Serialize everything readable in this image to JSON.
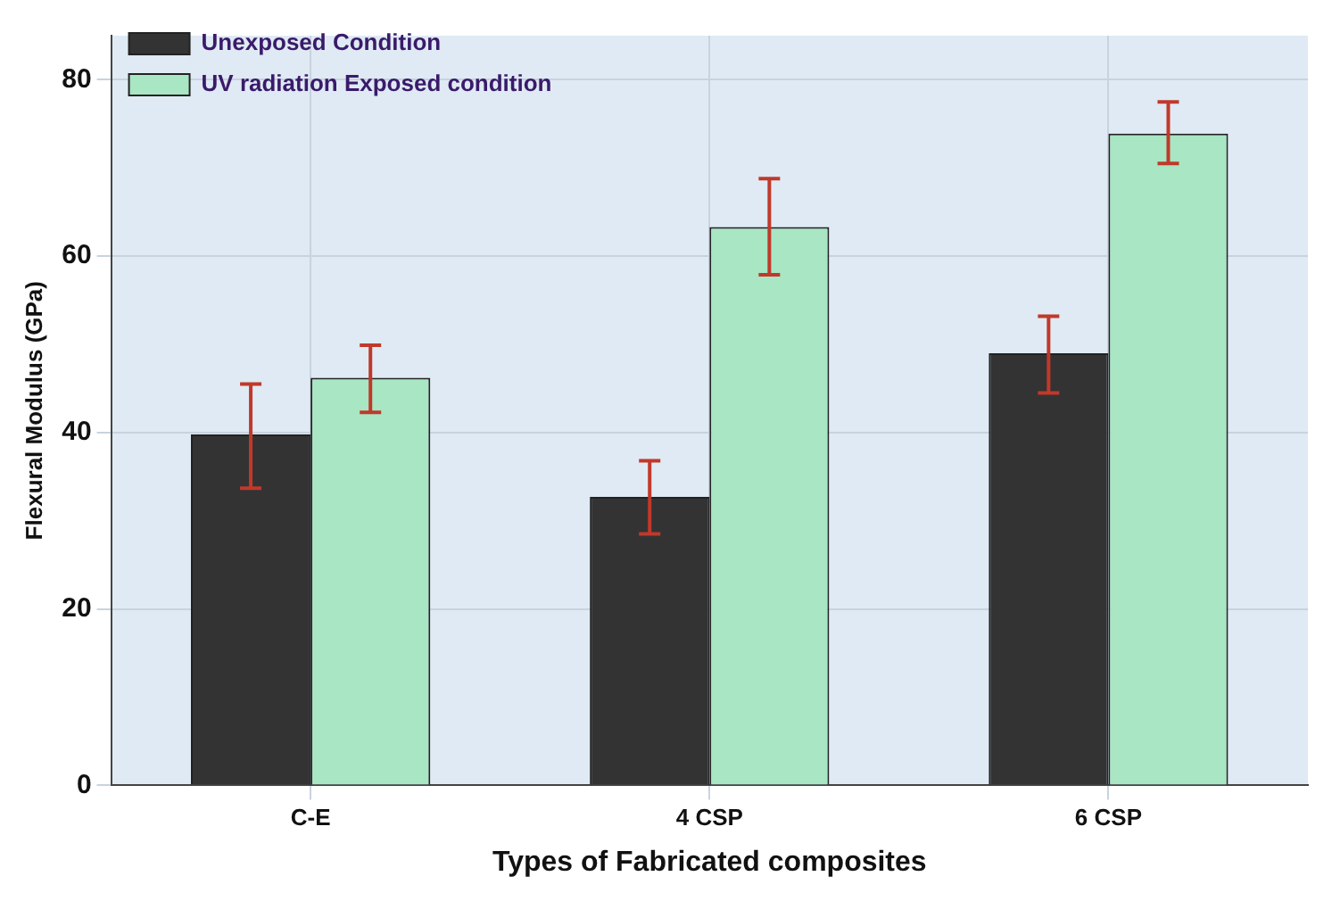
{
  "chart_data": {
    "type": "bar",
    "xlabel": "Types of Fabricated composites",
    "ylabel": "Flexural Modulus (GPa)",
    "categories": [
      "C-E",
      "4 CSP",
      "6 CSP"
    ],
    "series": [
      {
        "name": "Unexposed Condition",
        "color": "#333333",
        "values": [
          39.8,
          32.7,
          49.0
        ],
        "errors": [
          [
            33.7,
            45.5
          ],
          [
            28.5,
            36.8
          ],
          [
            44.5,
            53.2
          ]
        ]
      },
      {
        "name": "UV radiation Exposed condition",
        "color": "#a8e6c4",
        "values": [
          46.2,
          63.3,
          73.9
        ],
        "errors": [
          [
            42.3,
            49.9
          ],
          [
            57.9,
            68.8
          ],
          [
            70.5,
            77.5
          ]
        ]
      }
    ],
    "ylim": [
      0,
      85
    ],
    "yticks": [
      0,
      20,
      40,
      60,
      80
    ],
    "grid": true,
    "legend": "top left"
  }
}
